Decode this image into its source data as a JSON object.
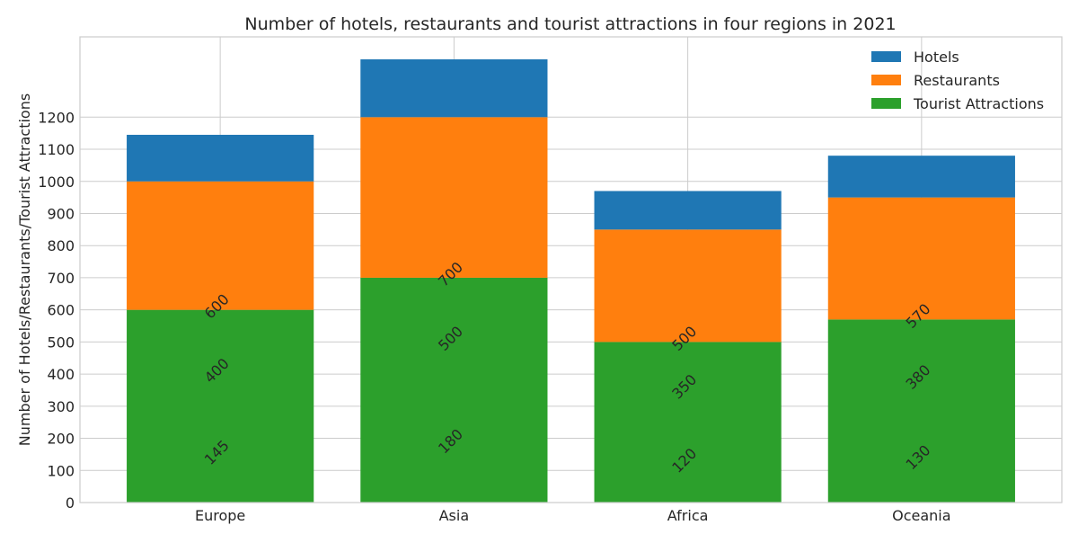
{
  "chart_data": {
    "type": "bar",
    "stacked": true,
    "title": "Number of hotels, restaurants and tourist attractions in four regions in 2021",
    "xlabel": "",
    "ylabel": "Number of Hotels/Restaurants/Tourist Attractions",
    "categories": [
      "Europe",
      "Asia",
      "Africa",
      "Oceania"
    ],
    "series": [
      {
        "name": "Tourist Attractions",
        "color": "#2ca02c",
        "values": [
          600,
          700,
          500,
          570
        ]
      },
      {
        "name": "Restaurants",
        "color": "#ff7f0e",
        "values": [
          400,
          500,
          350,
          380
        ]
      },
      {
        "name": "Hotels",
        "color": "#1f77b4",
        "values": [
          145,
          180,
          120,
          130
        ]
      }
    ],
    "legend_order": [
      "Hotels",
      "Restaurants",
      "Tourist Attractions"
    ],
    "annotations": [
      {
        "text": "600",
        "category": "Europe",
        "y": 600
      },
      {
        "text": "400",
        "category": "Europe",
        "y": 400
      },
      {
        "text": "145",
        "category": "Europe",
        "y": 145
      },
      {
        "text": "700",
        "category": "Asia",
        "y": 700
      },
      {
        "text": "500",
        "category": "Asia",
        "y": 500
      },
      {
        "text": "180",
        "category": "Asia",
        "y": 180
      },
      {
        "text": "500",
        "category": "Africa",
        "y": 500
      },
      {
        "text": "350",
        "category": "Africa",
        "y": 350
      },
      {
        "text": "120",
        "category": "Africa",
        "y": 120
      },
      {
        "text": "570",
        "category": "Oceania",
        "y": 570
      },
      {
        "text": "380",
        "category": "Oceania",
        "y": 380
      },
      {
        "text": "130",
        "category": "Oceania",
        "y": 130
      }
    ],
    "yticks": [
      0,
      100,
      200,
      300,
      400,
      500,
      600,
      700,
      800,
      900,
      1000,
      1100,
      1200
    ],
    "ylim": [
      0,
      1450
    ],
    "grid": true,
    "legend_position": "top-right",
    "axis_color": "#cccccc",
    "grid_color": "#cccccc"
  }
}
